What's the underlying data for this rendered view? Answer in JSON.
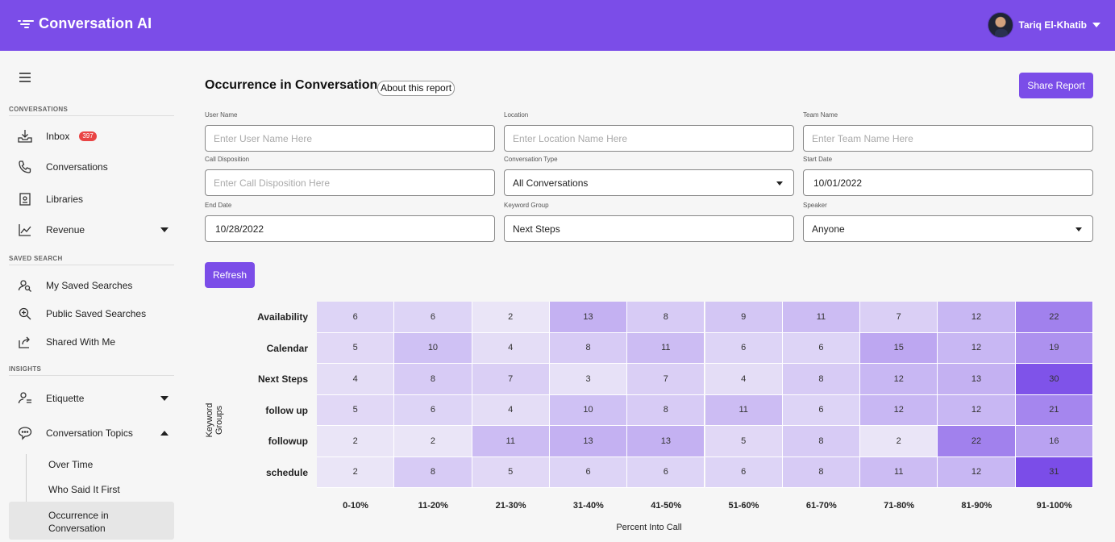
{
  "header": {
    "app_title": "Conversation AI",
    "user_name": "Tariq El-Khatib",
    "accent": "#7b4de8"
  },
  "sidebar": {
    "sections": {
      "conversations": "CONVERSATIONS",
      "saved_search": "SAVED SEARCH",
      "insights": "INSIGHTS"
    },
    "items": {
      "inbox": {
        "label": "Inbox",
        "badge": "397",
        "icon": "inbox-icon"
      },
      "conversations": {
        "label": "Conversations",
        "icon": "phone-icon"
      },
      "libraries": {
        "label": "Libraries",
        "icon": "library-icon"
      },
      "revenue": {
        "label": "Revenue",
        "icon": "chart-line-icon"
      },
      "my_saved": {
        "label": "My Saved Searches",
        "icon": "user-search-icon"
      },
      "public_saved": {
        "label": "Public Saved Searches",
        "icon": "zoom-icon"
      },
      "shared": {
        "label": "Shared With Me",
        "icon": "share-icon"
      },
      "etiquette": {
        "label": "Etiquette",
        "icon": "user-list-icon"
      },
      "topics": {
        "label": "Conversation Topics",
        "icon": "chat-bubble-icon"
      }
    },
    "sub_items": {
      "over_time": "Over Time",
      "who_said": "Who Said It First",
      "occurrence": "Occurrence in Conversation"
    }
  },
  "main": {
    "title": "Occurrence in Conversation",
    "about_label": "About this report",
    "share_label": "Share Report",
    "refresh_label": "Refresh",
    "filters": {
      "user_name": {
        "label": "User Name",
        "placeholder": "Enter User Name Here"
      },
      "location": {
        "label": "Location",
        "placeholder": "Enter Location Name Here"
      },
      "team_name": {
        "label": "Team Name",
        "placeholder": "Enter Team Name Here"
      },
      "call_disposition": {
        "label": "Call Disposition",
        "placeholder": "Enter Call Disposition Here"
      },
      "conversation_type": {
        "label": "Conversation Type",
        "value": "All Conversations"
      },
      "start_date": {
        "label": "Start Date",
        "value": "10/01/2022"
      },
      "end_date": {
        "label": "End Date",
        "value": "10/28/2022"
      },
      "keyword_group": {
        "label": "Keyword Group",
        "value": "Next Steps"
      },
      "speaker": {
        "label": "Speaker",
        "value": "Anyone"
      }
    }
  },
  "chart_data": {
    "type": "heatmap",
    "xlabel": "Percent Into Call",
    "ylabel": "Keyword Groups",
    "x": [
      "0-10%",
      "11-20%",
      "21-30%",
      "31-40%",
      "41-50%",
      "51-60%",
      "61-70%",
      "71-80%",
      "81-90%",
      "91-100%"
    ],
    "y": [
      "Availability",
      "Calendar",
      "Next Steps",
      "follow up",
      "followup",
      "schedule"
    ],
    "values": [
      [
        6,
        6,
        2,
        13,
        8,
        9,
        11,
        7,
        12,
        22
      ],
      [
        5,
        10,
        4,
        8,
        11,
        6,
        6,
        15,
        12,
        19
      ],
      [
        4,
        8,
        7,
        3,
        7,
        4,
        8,
        12,
        13,
        30
      ],
      [
        5,
        6,
        4,
        10,
        8,
        11,
        6,
        12,
        12,
        21
      ],
      [
        2,
        2,
        11,
        13,
        13,
        5,
        8,
        2,
        22,
        16
      ],
      [
        2,
        8,
        5,
        6,
        6,
        6,
        8,
        11,
        12,
        31
      ]
    ],
    "color_low": "#efecf8",
    "color_high": "#7b4de8"
  }
}
